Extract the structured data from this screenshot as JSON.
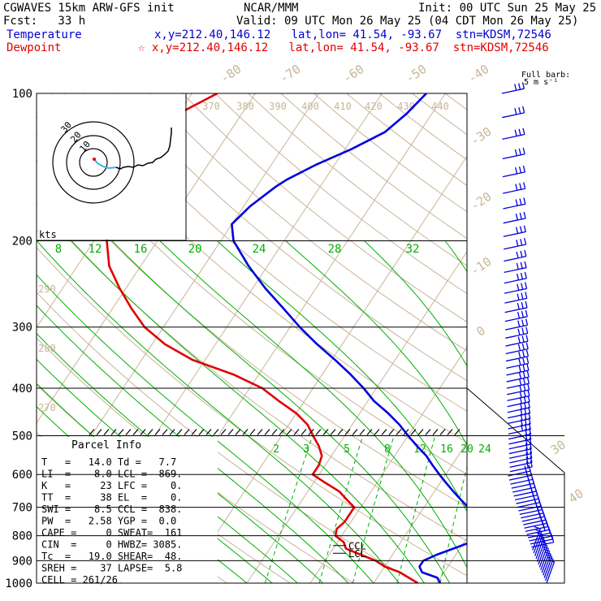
{
  "header": {
    "model": "CGWAVES 15km ARW-GFS init",
    "org": "NCAR/MMM",
    "init": "Init: 00 UTC Sun 25 May 25",
    "fcst": "Fcst:   33 h",
    "valid": "Valid: 09 UTC Mon 26 May 25 (04 CDT Mon 26 May 25)",
    "temperature_label": "Temperature",
    "dewpoint_label": "Dewpoint",
    "temp_loc": "x,y=212.40,146.12   lat,lon= 41.54, -93.67  stn=KDSM,72546",
    "dew_loc": "☆ x,y=212.40,146.12   lat,lon= 41.54, -93.67  stn=KDSM,72546",
    "barb_note_1": "Full barb:",
    "barb_note_2": "5 m s⁻¹"
  },
  "colors": {
    "temperature": "#0000e0",
    "dewpoint": "#e00000",
    "isotherm": "#c8b498",
    "dry_adiabat": "#c8b498",
    "moist_adiabat": "#00b000",
    "mixing_ratio": "#00b000"
  },
  "parcel": {
    "title": "Parcel Info",
    "lines": [
      "T   =   14.0 Td =   7.7",
      "LI  =    8.0 LCL =  869.",
      "K   =     23 LFC =    0.",
      "TT  =     38 EL  =    0.",
      "SWI =    8.5 CCL =  838.",
      "PW  =   2.58 YGP =  0.0",
      "CAPE =     0 SWEAT=  161",
      "CIN  =     0 HWBZ= 3085.",
      "Tc  =   19.0 SHEAR=  48.",
      "SREH =    37 LAPSE=  5.8",
      "CELL = 261/26"
    ]
  },
  "hodograph": {
    "units": "kts",
    "ring_labels": [
      "10",
      "20",
      "30"
    ]
  },
  "chart_data": {
    "type": "line",
    "title": "",
    "xlabel": "",
    "ylabel": "",
    "y_ticks": [
      "100",
      "200",
      "300",
      "400",
      "500",
      "600",
      "700",
      "800",
      "900",
      "1000"
    ],
    "isotherm_labels": [
      "-80",
      "-70",
      "-60",
      "-50",
      "-40",
      "-30",
      "-20",
      "-10",
      "0",
      "30",
      "40"
    ],
    "theta_labels": [
      "370",
      "380",
      "390",
      "400",
      "410",
      "420",
      "430",
      "440",
      "290",
      "280",
      "270"
    ],
    "mixing_labels_upper": [
      "8",
      "12",
      "16",
      "20",
      "24",
      "28",
      "32"
    ],
    "mixing_labels_lower": [
      "2",
      "3",
      "5",
      "8",
      "12",
      "16",
      "20",
      "24"
    ],
    "level_labels": [
      "CCL",
      "LCL"
    ],
    "series": [
      {
        "name": "Temperature",
        "points": [
          [
            1000,
            10.5
          ],
          [
            975,
            9.5
          ],
          [
            950,
            6.5
          ],
          [
            925,
            5.5
          ],
          [
            900,
            5.5
          ],
          [
            875,
            7.0
          ],
          [
            850,
            9.0
          ],
          [
            825,
            11.0
          ],
          [
            800,
            12.5
          ],
          [
            775,
            12.0
          ],
          [
            750,
            10.0
          ],
          [
            725,
            8.5
          ],
          [
            700,
            7.0
          ],
          [
            675,
            5.0
          ],
          [
            650,
            3.0
          ],
          [
            625,
            1.0
          ],
          [
            600,
            -1.0
          ],
          [
            575,
            -3.0
          ],
          [
            550,
            -5.0
          ],
          [
            525,
            -7.5
          ],
          [
            500,
            -10.0
          ],
          [
            475,
            -12.5
          ],
          [
            450,
            -15.5
          ],
          [
            425,
            -19.0
          ],
          [
            400,
            -22.0
          ],
          [
            375,
            -25.5
          ],
          [
            350,
            -29.5
          ],
          [
            325,
            -34.0
          ],
          [
            300,
            -38.5
          ],
          [
            275,
            -43.0
          ],
          [
            250,
            -48.0
          ],
          [
            225,
            -53.0
          ],
          [
            200,
            -58.0
          ],
          [
            185,
            -60.0
          ],
          [
            170,
            -59.0
          ],
          [
            155,
            -57.0
          ],
          [
            150,
            -56.0
          ],
          [
            140,
            -53.0
          ],
          [
            130,
            -49.0
          ],
          [
            120,
            -45.5
          ],
          [
            110,
            -44.0
          ],
          [
            100,
            -43.0
          ]
        ]
      },
      {
        "name": "Dewpoint",
        "points": [
          [
            1000,
            7.0
          ],
          [
            975,
            5.0
          ],
          [
            950,
            3.0
          ],
          [
            925,
            0.0
          ],
          [
            900,
            -2.0
          ],
          [
            875,
            -5.0
          ],
          [
            850,
            -8.0
          ],
          [
            825,
            -9.0
          ],
          [
            800,
            -11.0
          ],
          [
            775,
            -11.5
          ],
          [
            750,
            -11.0
          ],
          [
            725,
            -11.0
          ],
          [
            700,
            -11.0
          ],
          [
            675,
            -13.0
          ],
          [
            650,
            -15.0
          ],
          [
            625,
            -18.0
          ],
          [
            600,
            -21.0
          ],
          [
            575,
            -21.0
          ],
          [
            550,
            -21.5
          ],
          [
            525,
            -23.0
          ],
          [
            500,
            -25.0
          ],
          [
            475,
            -27.0
          ],
          [
            450,
            -30.0
          ],
          [
            425,
            -34.0
          ],
          [
            400,
            -38.0
          ],
          [
            375,
            -44.0
          ],
          [
            350,
            -52.0
          ],
          [
            325,
            -58.0
          ],
          [
            300,
            -63.0
          ],
          [
            275,
            -67.0
          ],
          [
            250,
            -71.0
          ],
          [
            225,
            -75.0
          ],
          [
            200,
            -78.0
          ],
          [
            185,
            -80.0
          ],
          [
            170,
            -82.0
          ],
          [
            160,
            -83.0
          ],
          [
            150,
            -85.0
          ],
          [
            140,
            -87.0
          ],
          [
            130,
            -86.0
          ],
          [
            120,
            -83.0
          ],
          [
            110,
            -80.0
          ],
          [
            100,
            -76.0
          ]
        ]
      }
    ]
  }
}
